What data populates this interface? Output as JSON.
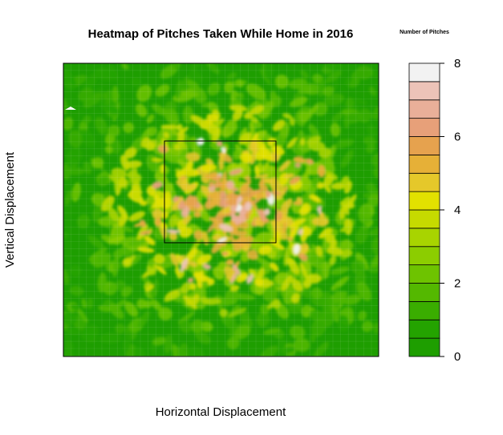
{
  "chart_data": {
    "type": "heatmap",
    "title": "Heatmap of Pitches Taken While Home in 2016",
    "xlabel": "Horizontal Displacement",
    "ylabel": "Vertical Displacement",
    "legend": {
      "title": "Number of Pitches",
      "placement": "right",
      "range": [
        0,
        8
      ],
      "ticks": [
        0,
        2,
        4,
        6,
        8
      ],
      "colors": [
        "#1e9e00",
        "#24a300",
        "#3aad00",
        "#54b800",
        "#6ec300",
        "#8ccd00",
        "#a8d400",
        "#c6da00",
        "#e2e100",
        "#e5c82a",
        "#e6b037",
        "#e6a24e",
        "#e7a079",
        "#e9af99",
        "#ecc3b8",
        "#f2f2f2"
      ]
    },
    "strike_zone": "center box",
    "grid": true
  }
}
